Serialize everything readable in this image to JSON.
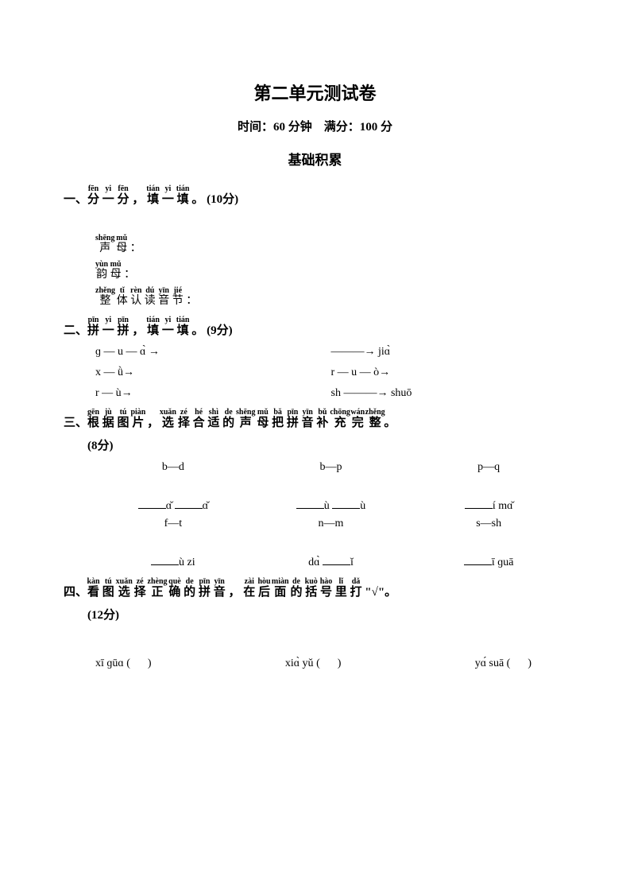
{
  "title": "第二单元测试卷",
  "time_label": "时间：",
  "time_value": "60",
  "time_unit": "分钟",
  "full_label": "满分：",
  "full_value": "100",
  "full_unit": "分",
  "section_header": "基础积累",
  "q1": {
    "num": "一、",
    "chars": [
      "分",
      "一",
      "分",
      "，",
      "填",
      "一",
      "填",
      "。"
    ],
    "pinyin": [
      "fēn",
      "yi",
      "fēn",
      "",
      "tián",
      "yi",
      "tián",
      ""
    ],
    "points": "(10分)",
    "shengmu_py": [
      "shēng",
      "mǔ"
    ],
    "shengmu_ch": [
      "声",
      "母"
    ],
    "yunmu_py": [
      "yùn",
      "mǔ"
    ],
    "yunmu_ch": [
      "韵",
      "母"
    ],
    "zhengti_py": [
      "zhěng",
      "tǐ",
      "rèn",
      "dú",
      "yīn",
      "jié"
    ],
    "zhengti_ch": [
      "整",
      "体",
      "认",
      "读",
      "音",
      "节"
    ],
    "colon": "："
  },
  "q2": {
    "num": "二、",
    "chars": [
      "拼",
      "一",
      "拼",
      "，",
      "填",
      "一",
      "填",
      "。"
    ],
    "pinyin": [
      "pīn",
      "yi",
      "pīn",
      "",
      "tián",
      "yi",
      "tián",
      ""
    ],
    "points": "(9分)",
    "rows": [
      [
        "ɡ — u — ɑ̀ →",
        "———→ jiɑ̀"
      ],
      [
        "x — ǜ→",
        "r — u — ò→"
      ],
      [
        "r — ù→",
        "sh ———→ shuō"
      ]
    ]
  },
  "q3": {
    "num": "三、",
    "chars": [
      "根",
      "据",
      "图",
      "片",
      "，",
      "选",
      "择",
      "合",
      "适",
      "的",
      "声",
      "母",
      "把",
      "拼",
      "音",
      "补",
      "充",
      "完",
      "整",
      "。"
    ],
    "pinyin": [
      "gēn",
      "jù",
      "tú",
      "piàn",
      "",
      "xuǎn",
      "zé",
      "hé",
      "shì",
      "de",
      "shēng",
      "mǔ",
      "bǎ",
      "pīn",
      "yīn",
      "bǔ",
      "chōng",
      "wán",
      "zhěng",
      ""
    ],
    "points": "(8分)",
    "row1": [
      "b—d",
      "b—p",
      "p—q"
    ],
    "row2_suffix": [
      "ɑ̌",
      "ɑ̌",
      "ù",
      "ù",
      "í mɑ̌"
    ],
    "row3": [
      "f—t",
      "n—m",
      "s—sh"
    ],
    "row4": [
      "ù zi",
      "dɑ̀",
      "ǐ",
      "ī ɡuā"
    ]
  },
  "q4": {
    "num": "四、",
    "chars": [
      "看",
      "图",
      "选",
      "择",
      "正",
      "确",
      "的",
      "拼",
      "音",
      "，",
      "在",
      "后",
      "面",
      "的",
      "括",
      "号",
      "里",
      "打"
    ],
    "pinyin": [
      "kàn",
      "tú",
      "xuǎn",
      "zé",
      "zhèng",
      "què",
      "de",
      "pīn",
      "yīn",
      "",
      "zài",
      "hòu",
      "miàn",
      "de",
      "kuò",
      "hào",
      "lǐ",
      "dǎ"
    ],
    "tail": "\"√\"。",
    "points": "(12分)",
    "row": [
      "xī ɡūɑ",
      "xiɑ̀ yǔ",
      "yɑ́ suā"
    ]
  }
}
